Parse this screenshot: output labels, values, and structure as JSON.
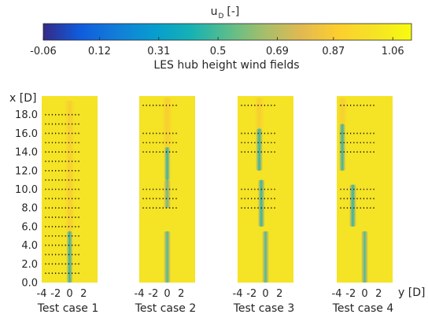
{
  "chart_data": {
    "type": "heatmap",
    "title": "LES hub height wind fields",
    "colorbar": {
      "label_main": "u",
      "label_sub": "D",
      "label_unit": "[-]",
      "range": [
        -0.06,
        1.12
      ],
      "tick_values": [
        -0.06,
        0.12,
        0.31,
        0.5,
        0.69,
        0.87,
        1.06
      ],
      "tick_labels": [
        "-0.06",
        "0.12",
        "0.31",
        "0.5",
        "0.69",
        "0.87",
        "1.06"
      ],
      "colormap": "parula"
    },
    "y_axis": {
      "label": "x [D]",
      "range": [
        0,
        20
      ],
      "tick_values": [
        0,
        2,
        4,
        6,
        8,
        10,
        12,
        14,
        16,
        18
      ],
      "tick_labels": [
        "0.0",
        "2.0",
        "4.0",
        "6.0",
        "8.0",
        "10.0",
        "12.0",
        "14.0",
        "16.0",
        "18.0"
      ]
    },
    "x_axis": {
      "label": "y [D]",
      "range": [
        -4,
        4
      ],
      "tick_values": [
        -4,
        -2,
        0,
        2
      ],
      "tick_labels": [
        "-4",
        "-2",
        "0",
        "2"
      ]
    },
    "background_value": 1.0,
    "panels": [
      {
        "name": "Test case 1",
        "wake_segments": [
          {
            "y_center": 0.0,
            "x_start": 0.0,
            "x_end": 5.5,
            "half_width": 0.55,
            "min_u": 0.45
          }
        ],
        "diffuse_wake": {
          "y_center": 0.0,
          "x_start": 5.5,
          "x_end": 19.5,
          "half_width": 0.8,
          "min_u": 0.85
        },
        "sample_rows_x": [
          1.0,
          2.0,
          3.0,
          4.0,
          5.0,
          6.0,
          7.0,
          8.0,
          9.0,
          10.0,
          11.0,
          12.0,
          13.0,
          14.0,
          15.0,
          16.0,
          17.0,
          18.0
        ],
        "sample_span_y": [
          -3.5,
          1.5
        ]
      },
      {
        "name": "Test case 2",
        "wake_segments": [
          {
            "y_center": 0.0,
            "x_start": 0.0,
            "x_end": 5.5,
            "half_width": 0.6,
            "min_u": 0.5
          },
          {
            "y_center": 0.0,
            "x_start": 8.0,
            "x_end": 11.0,
            "half_width": 0.6,
            "min_u": 0.55
          },
          {
            "y_center": 0.0,
            "x_start": 11.0,
            "x_end": 14.5,
            "half_width": 0.55,
            "min_u": 0.45
          }
        ],
        "diffuse_wake": {
          "y_center": 0.0,
          "x_start": 14.5,
          "x_end": 19.8,
          "half_width": 0.8,
          "min_u": 0.85
        },
        "sample_rows_x": [
          8.0,
          9.0,
          10.0,
          14.0,
          15.0,
          16.0,
          19.0
        ],
        "sample_span_y": [
          -3.5,
          1.5
        ]
      },
      {
        "name": "Test case 3",
        "wake_segments": [
          {
            "y_center": 0.0,
            "x_start": 0.0,
            "x_end": 5.5,
            "half_width": 0.6,
            "min_u": 0.5
          },
          {
            "y_center": -0.6,
            "x_start": 6.0,
            "x_end": 11.0,
            "half_width": 0.6,
            "min_u": 0.45
          },
          {
            "y_center": -0.9,
            "x_start": 12.0,
            "x_end": 16.5,
            "half_width": 0.6,
            "min_u": 0.45
          }
        ],
        "diffuse_wake": {
          "y_center": -0.9,
          "x_start": 16.5,
          "x_end": 19.8,
          "half_width": 0.8,
          "min_u": 0.85
        },
        "sample_rows_x": [
          8.0,
          9.0,
          10.0,
          14.0,
          15.0,
          16.0,
          19.0
        ],
        "sample_span_y": [
          -3.5,
          1.5
        ]
      },
      {
        "name": "Test case 4",
        "wake_segments": [
          {
            "y_center": 0.0,
            "x_start": 0.0,
            "x_end": 5.5,
            "half_width": 0.6,
            "min_u": 0.5
          },
          {
            "y_center": -1.7,
            "x_start": 6.0,
            "x_end": 10.5,
            "half_width": 0.6,
            "min_u": 0.45
          },
          {
            "y_center": -3.2,
            "x_start": 12.0,
            "x_end": 17.0,
            "half_width": 0.55,
            "min_u": 0.45
          }
        ],
        "diffuse_wake": {
          "y_center": -3.2,
          "x_start": 17.0,
          "x_end": 19.8,
          "half_width": 0.8,
          "min_u": 0.85
        },
        "sample_rows_x": [
          8.0,
          9.0,
          10.0,
          14.0,
          15.0,
          16.0,
          19.0
        ],
        "sample_span_y": [
          -3.5,
          1.5
        ]
      }
    ]
  }
}
